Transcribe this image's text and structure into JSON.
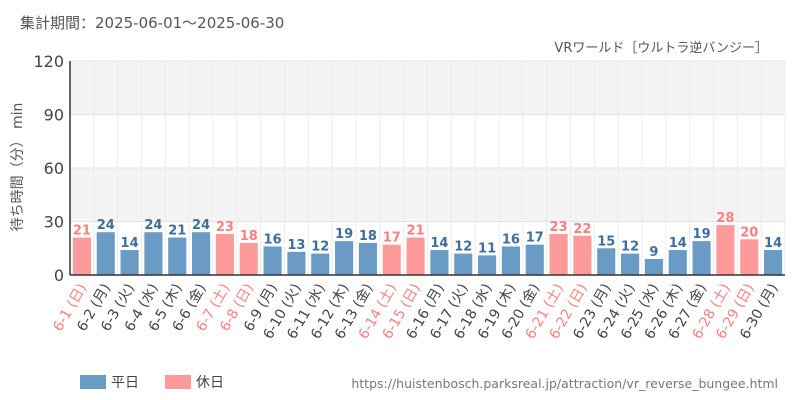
{
  "header": {
    "period": "集計期間：2025-06-01～2025-06-30",
    "attraction": "VRワールド［ウルトラ逆バンジー］"
  },
  "footer": {
    "url": "https://huistenbosch.parksreal.jp/attraction/vr_reverse_bungee.html"
  },
  "colors": {
    "weekday": "#6a9bc4",
    "holiday": "#ff9a9a",
    "weekday_label": "#3d6f9e",
    "holiday_label": "#ff7f7f",
    "axis_text": "#444444",
    "header_text": "#555555",
    "url_text": "#777777"
  },
  "chart_data": {
    "type": "bar",
    "ylabel": "待ち時間（分） min",
    "ylim": [
      0,
      120
    ],
    "yticks": [
      0,
      30,
      60,
      90,
      120
    ],
    "legend": [
      {
        "key": "weekday",
        "label": "平日"
      },
      {
        "key": "holiday",
        "label": "休日"
      }
    ],
    "categories": [
      "6-1 (日)",
      "6-2 (月)",
      "6-3 (火)",
      "6-4 (水)",
      "6-5 (木)",
      "6-6 (金)",
      "6-7 (土)",
      "6-8 (日)",
      "6-9 (月)",
      "6-10 (火)",
      "6-11 (水)",
      "6-12 (木)",
      "6-13 (金)",
      "6-14 (土)",
      "6-15 (日)",
      "6-16 (月)",
      "6-17 (火)",
      "6-18 (水)",
      "6-19 (木)",
      "6-20 (金)",
      "6-21 (土)",
      "6-22 (日)",
      "6-23 (月)",
      "6-24 (火)",
      "6-25 (水)",
      "6-26 (木)",
      "6-27 (金)",
      "6-28 (土)",
      "6-29 (日)",
      "6-30 (月)"
    ],
    "values": [
      21,
      24,
      14,
      24,
      21,
      24,
      23,
      18,
      16,
      13,
      12,
      19,
      18,
      17,
      21,
      14,
      12,
      11,
      16,
      17,
      23,
      22,
      15,
      12,
      9,
      14,
      19,
      28,
      20,
      14
    ],
    "day_type": [
      "holiday",
      "weekday",
      "weekday",
      "weekday",
      "weekday",
      "weekday",
      "holiday",
      "holiday",
      "weekday",
      "weekday",
      "weekday",
      "weekday",
      "weekday",
      "holiday",
      "holiday",
      "weekday",
      "weekday",
      "weekday",
      "weekday",
      "weekday",
      "holiday",
      "holiday",
      "weekday",
      "weekday",
      "weekday",
      "weekday",
      "weekday",
      "holiday",
      "holiday",
      "weekday"
    ]
  }
}
